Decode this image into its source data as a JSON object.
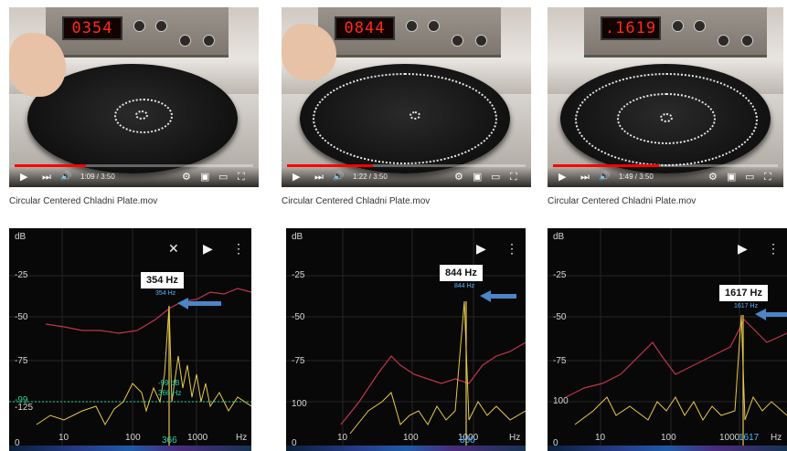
{
  "videos": [
    {
      "readout": "0354",
      "time": "1:09 / 3:50",
      "progress": 0.3,
      "caption": "Circular Centered Chladni Plate.mov"
    },
    {
      "readout": "0844",
      "time": "1:22 / 3:50",
      "progress": 0.36,
      "caption": "Circular Centered Chladni Plate.mov"
    },
    {
      "readout": ".1619",
      "time": "1:49 / 3:50",
      "progress": 0.47,
      "caption": "Circular Centered Chladni Plate.mov"
    }
  ],
  "video_controls": {
    "play": "▶",
    "next": "⏭",
    "volume": "🔊",
    "settings": "⚙",
    "miniplayer": "▣",
    "theater": "▭",
    "fullscreen": "⛶"
  },
  "spectrum_panels": [
    {
      "y_unit": "dB",
      "y_ticks": [
        "-25",
        "-50",
        "-75",
        "-99",
        "-125"
      ],
      "x_ticks": [
        "10",
        "100",
        "1000"
      ],
      "x_unit": "Hz",
      "bottom_y": "0",
      "peak_label": "354 Hz",
      "peak_small": "354 Hz",
      "freq_bottom": "366",
      "low_tag_1": "-99 dB",
      "low_tag_2": "366 Hz",
      "show_close": true
    },
    {
      "y_unit": "dB",
      "y_ticks": [
        "-25",
        "-50",
        "-75",
        "100"
      ],
      "x_ticks": [
        "10",
        "100",
        "1000"
      ],
      "x_unit": "Hz",
      "bottom_y": "0",
      "peak_label": "844 Hz",
      "peak_small": "844 Hz",
      "freq_bottom": "850",
      "show_close": false
    },
    {
      "y_unit": "dB",
      "y_ticks": [
        "-25",
        "-50",
        "-75",
        "100"
      ],
      "x_ticks": [
        "10",
        "100",
        "1000",
        "1617"
      ],
      "x_unit": "Hz",
      "bottom_y": "0",
      "peak_label": "1617 Hz",
      "peak_small": "1617 Hz",
      "show_close": false
    }
  ],
  "toolbar_icons": {
    "close": "✕",
    "play": "▶",
    "more": "⋮"
  },
  "colors": {
    "peak_trace": "#e6c94a",
    "max_trace": "#c0344d",
    "arrow": "#4a86c8",
    "grid": "#2a2a2a",
    "low_tag": "#24d3a0"
  }
}
